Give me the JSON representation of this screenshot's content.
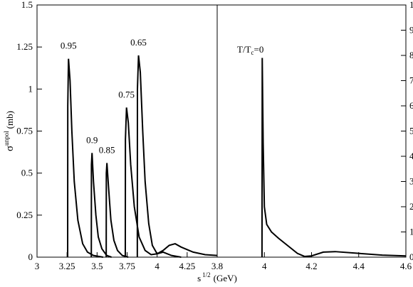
{
  "chart_data": [
    {
      "type": "line",
      "ylabel": {
        "symbol": "σ",
        "sup": "unpol",
        "unit": "(mb)"
      },
      "xlabel": {
        "symbol": "s",
        "sup": "1/2",
        "unit": "(GeV)"
      },
      "xlim": [
        3,
        4.5
      ],
      "ylim": [
        0,
        1.5
      ],
      "xticks": [
        3,
        3.25,
        3.5,
        3.75,
        4,
        4.25
      ],
      "yticks": [
        0,
        0.25,
        0.5,
        0.75,
        1,
        1.25,
        1.5
      ],
      "y_axis_side": "left",
      "series": [
        {
          "name": "0.95",
          "color": "#000000",
          "x": [
            3.255,
            3.256,
            3.262,
            3.275,
            3.29,
            3.31,
            3.34,
            3.38,
            3.42,
            3.47,
            3.55
          ],
          "values": [
            0,
            0.9,
            1.18,
            1.05,
            0.75,
            0.45,
            0.22,
            0.08,
            0.03,
            0.01,
            0
          ]
        },
        {
          "name": "0.9",
          "color": "#000000",
          "x": [
            3.452,
            3.453,
            3.458,
            3.47,
            3.49,
            3.51,
            3.54,
            3.58,
            3.62
          ],
          "values": [
            0,
            0.55,
            0.62,
            0.45,
            0.25,
            0.12,
            0.05,
            0.01,
            0
          ]
        },
        {
          "name": "0.85",
          "color": "#000000",
          "x": [
            3.576,
            3.577,
            3.582,
            3.595,
            3.615,
            3.64,
            3.67,
            3.71,
            3.76
          ],
          "values": [
            0,
            0.5,
            0.56,
            0.42,
            0.22,
            0.1,
            0.04,
            0.01,
            0
          ]
        },
        {
          "name": "0.75",
          "color": "#000000",
          "x": [
            3.735,
            3.736,
            3.745,
            3.76,
            3.78,
            3.81,
            3.85,
            3.9,
            3.95,
            4.0,
            4.05,
            4.12,
            4.2
          ],
          "values": [
            0,
            0.7,
            0.89,
            0.8,
            0.55,
            0.3,
            0.12,
            0.04,
            0.015,
            0.02,
            0.03,
            0.01,
            0
          ]
        },
        {
          "name": "0.65",
          "color": "#000000",
          "x": [
            3.835,
            3.836,
            3.845,
            3.86,
            3.88,
            3.9,
            3.93,
            3.96,
            4.0,
            4.05,
            4.1,
            4.15,
            4.2,
            4.3,
            4.4,
            4.5
          ],
          "values": [
            0,
            1.0,
            1.2,
            1.1,
            0.75,
            0.45,
            0.2,
            0.07,
            0.02,
            0.04,
            0.07,
            0.08,
            0.06,
            0.03,
            0.015,
            0.01
          ]
        }
      ]
    },
    {
      "type": "line",
      "xlim": [
        3.8,
        4.6
      ],
      "ylim": [
        0,
        10
      ],
      "xticks": [
        3.8,
        4,
        4.2,
        4.4,
        4.6
      ],
      "yticks": [
        0,
        1,
        2,
        3,
        4,
        5,
        6,
        7,
        8,
        9,
        10
      ],
      "y_axis_side": "right",
      "annotation": {
        "main": "T/T",
        "sub": "c",
        "rest": "=0"
      },
      "series": [
        {
          "color": "#000000",
          "x": [
            3.99,
            3.991,
            3.995,
            4.0,
            4.01,
            4.03,
            4.06,
            4.1,
            4.14,
            4.17,
            4.2,
            4.25,
            4.3,
            4.4,
            4.5,
            4.6
          ],
          "values": [
            0,
            7.9,
            4.5,
            2.0,
            1.3,
            1.0,
            0.75,
            0.45,
            0.15,
            0.03,
            0.05,
            0.2,
            0.22,
            0.15,
            0.08,
            0.05
          ]
        }
      ]
    }
  ]
}
